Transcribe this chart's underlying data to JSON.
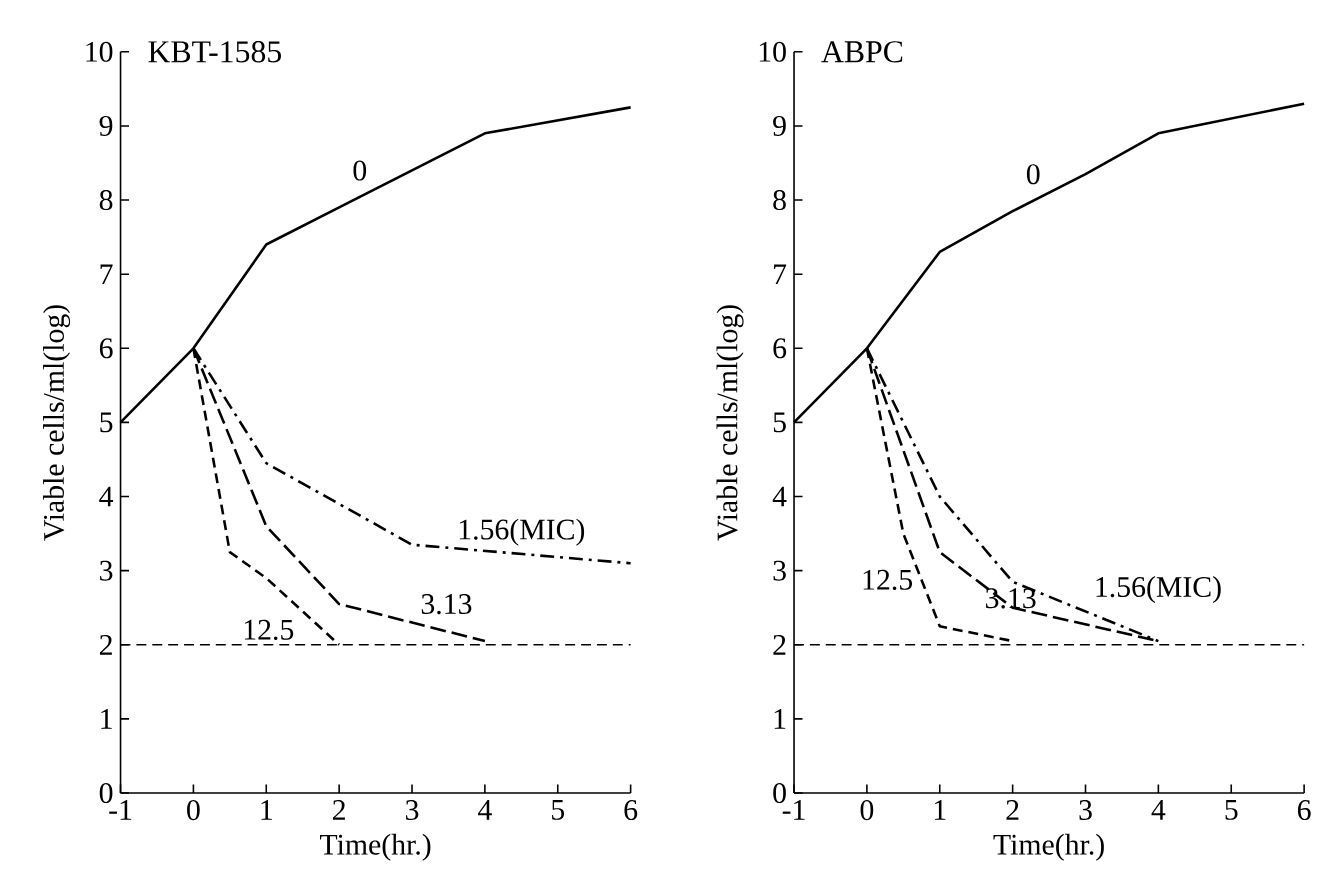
{
  "chart_data": [
    {
      "type": "line",
      "title": "KBT-1585",
      "xlabel": "Time(hr.)",
      "ylabel": "Viable cells/ml(log)",
      "xlim": [
        -1,
        6
      ],
      "ylim": [
        0,
        10
      ],
      "xticks": [
        -1,
        0,
        1,
        2,
        3,
        4,
        5,
        6
      ],
      "yticks": [
        0,
        1,
        2,
        3,
        4,
        5,
        6,
        7,
        8,
        9,
        10
      ],
      "grid": false,
      "marker": "none",
      "ref_lines": [
        {
          "axis": "y",
          "value": 2,
          "line_style": "dashed"
        }
      ],
      "series": [
        {
          "name": "0",
          "color": "#000000",
          "line_style": "solid",
          "x": [
            -1,
            0,
            1,
            2,
            3,
            4,
            6
          ],
          "values": [
            5,
            6,
            7.4,
            7.9,
            8.4,
            8.9,
            9.25
          ]
        },
        {
          "name": "1.56(MIC)",
          "color": "#000000",
          "line_style": "dashed",
          "x": [
            0,
            1,
            2,
            3,
            6
          ],
          "values": [
            6,
            4.45,
            3.9,
            3.35,
            3.1
          ]
        },
        {
          "name": "3.13",
          "color": "#000000",
          "line_style": "dashed",
          "x": [
            0,
            1,
            2,
            4
          ],
          "values": [
            6,
            3.6,
            2.55,
            2.05
          ]
        },
        {
          "name": "12.5",
          "color": "#000000",
          "line_style": "dashed",
          "x": [
            0,
            0.5,
            1,
            2
          ],
          "values": [
            6,
            3.25,
            2.9,
            2.0
          ]
        }
      ]
    },
    {
      "type": "line",
      "title": "ABPC",
      "xlabel": "Time(hr.)",
      "ylabel": "Viable cells/ml(log)",
      "xlim": [
        -1,
        6
      ],
      "ylim": [
        0,
        10
      ],
      "xticks": [
        -1,
        0,
        1,
        2,
        3,
        4,
        5,
        6
      ],
      "yticks": [
        0,
        1,
        2,
        3,
        4,
        5,
        6,
        7,
        8,
        9,
        10
      ],
      "grid": false,
      "marker": "none",
      "ref_lines": [
        {
          "axis": "y",
          "value": 2,
          "line_style": "dashed"
        }
      ],
      "series": [
        {
          "name": "0",
          "color": "#000000",
          "line_style": "solid",
          "x": [
            -1,
            0,
            1,
            2,
            3,
            4,
            6
          ],
          "values": [
            5,
            6,
            7.3,
            7.85,
            8.35,
            8.9,
            9.3
          ]
        },
        {
          "name": "1.56(MIC)",
          "color": "#000000",
          "line_style": "dashed",
          "x": [
            0,
            1,
            2,
            4
          ],
          "values": [
            6,
            4.0,
            2.85,
            2.05
          ]
        },
        {
          "name": "3.13",
          "color": "#000000",
          "line_style": "dashed",
          "x": [
            0,
            1,
            2,
            4
          ],
          "values": [
            6,
            3.25,
            2.5,
            2.05
          ]
        },
        {
          "name": "12.5",
          "color": "#000000",
          "line_style": "dashed",
          "x": [
            0,
            0.5,
            1,
            2
          ],
          "values": [
            6,
            3.5,
            2.25,
            2.05
          ]
        }
      ]
    }
  ]
}
